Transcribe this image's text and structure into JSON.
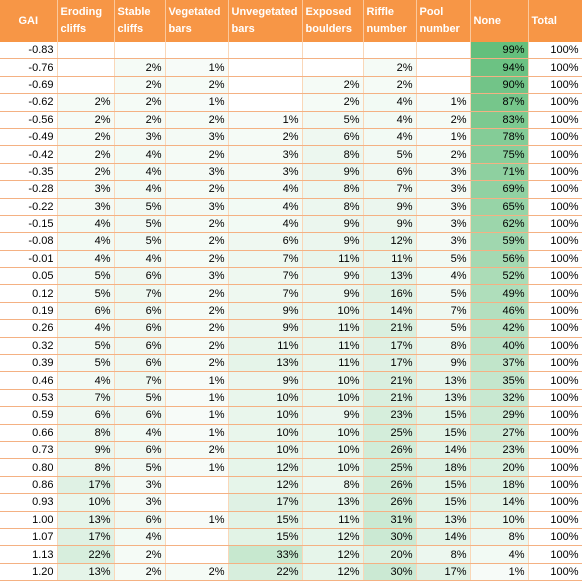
{
  "table": {
    "header": [
      "GAI",
      "Eroding cliffs",
      "Stable cliffs",
      "Vegetated bars",
      "Unvegetated bars",
      "Exposed boulders",
      "Riffle number",
      "Pool number",
      "None",
      "Total"
    ],
    "rows": [
      [
        "-0.83",
        null,
        null,
        null,
        null,
        null,
        null,
        null,
        "99%",
        "100%"
      ],
      [
        "-0.76",
        null,
        "2%",
        "1%",
        null,
        null,
        "2%",
        null,
        "94%",
        "100%"
      ],
      [
        "-0.69",
        null,
        "2%",
        "2%",
        null,
        "2%",
        "2%",
        null,
        "90%",
        "100%"
      ],
      [
        "-0.62",
        "2%",
        "2%",
        "1%",
        null,
        "2%",
        "4%",
        "1%",
        "87%",
        "100%"
      ],
      [
        "-0.56",
        "2%",
        "2%",
        "2%",
        "1%",
        "5%",
        "4%",
        "2%",
        "83%",
        "100%"
      ],
      [
        "-0.49",
        "2%",
        "3%",
        "3%",
        "2%",
        "6%",
        "4%",
        "1%",
        "78%",
        "100%"
      ],
      [
        "-0.42",
        "2%",
        "4%",
        "2%",
        "3%",
        "8%",
        "5%",
        "2%",
        "75%",
        "100%"
      ],
      [
        "-0.35",
        "2%",
        "4%",
        "3%",
        "3%",
        "9%",
        "6%",
        "3%",
        "71%",
        "100%"
      ],
      [
        "-0.28",
        "3%",
        "4%",
        "2%",
        "4%",
        "8%",
        "7%",
        "3%",
        "69%",
        "100%"
      ],
      [
        "-0.22",
        "3%",
        "5%",
        "3%",
        "4%",
        "8%",
        "9%",
        "3%",
        "65%",
        "100%"
      ],
      [
        "-0.15",
        "4%",
        "5%",
        "2%",
        "4%",
        "9%",
        "9%",
        "3%",
        "62%",
        "100%"
      ],
      [
        "-0.08",
        "4%",
        "5%",
        "2%",
        "6%",
        "9%",
        "12%",
        "3%",
        "59%",
        "100%"
      ],
      [
        "-0.01",
        "4%",
        "4%",
        "2%",
        "7%",
        "11%",
        "11%",
        "5%",
        "56%",
        "100%"
      ],
      [
        "0.05",
        "5%",
        "6%",
        "3%",
        "7%",
        "9%",
        "13%",
        "4%",
        "52%",
        "100%"
      ],
      [
        "0.12",
        "5%",
        "7%",
        "2%",
        "7%",
        "9%",
        "16%",
        "5%",
        "49%",
        "100%"
      ],
      [
        "0.19",
        "6%",
        "6%",
        "2%",
        "9%",
        "10%",
        "14%",
        "7%",
        "46%",
        "100%"
      ],
      [
        "0.26",
        "4%",
        "6%",
        "2%",
        "9%",
        "11%",
        "21%",
        "5%",
        "42%",
        "100%"
      ],
      [
        "0.32",
        "5%",
        "6%",
        "2%",
        "11%",
        "11%",
        "17%",
        "8%",
        "40%",
        "100%"
      ],
      [
        "0.39",
        "5%",
        "6%",
        "2%",
        "13%",
        "11%",
        "17%",
        "9%",
        "37%",
        "100%"
      ],
      [
        "0.46",
        "4%",
        "7%",
        "1%",
        "9%",
        "10%",
        "21%",
        "13%",
        "35%",
        "100%"
      ],
      [
        "0.53",
        "7%",
        "5%",
        "1%",
        "10%",
        "10%",
        "21%",
        "13%",
        "32%",
        "100%"
      ],
      [
        "0.59",
        "6%",
        "6%",
        "1%",
        "10%",
        "9%",
        "23%",
        "15%",
        "29%",
        "100%"
      ],
      [
        "0.66",
        "8%",
        "4%",
        "1%",
        "10%",
        "10%",
        "25%",
        "15%",
        "27%",
        "100%"
      ],
      [
        "0.73",
        "9%",
        "6%",
        "2%",
        "10%",
        "10%",
        "26%",
        "14%",
        "23%",
        "100%"
      ],
      [
        "0.80",
        "8%",
        "5%",
        "1%",
        "12%",
        "10%",
        "25%",
        "18%",
        "20%",
        "100%"
      ],
      [
        "0.86",
        "17%",
        "3%",
        null,
        "12%",
        "8%",
        "26%",
        "15%",
        "18%",
        "100%"
      ],
      [
        "0.93",
        "10%",
        "3%",
        null,
        "17%",
        "13%",
        "26%",
        "15%",
        "14%",
        "100%"
      ],
      [
        "1.00",
        "13%",
        "6%",
        "1%",
        "15%",
        "11%",
        "31%",
        "13%",
        "10%",
        "100%"
      ],
      [
        "1.07",
        "17%",
        "4%",
        null,
        "15%",
        "12%",
        "30%",
        "14%",
        "8%",
        "100%"
      ],
      [
        "1.13",
        "22%",
        "2%",
        null,
        "33%",
        "12%",
        "20%",
        "8%",
        "4%",
        "100%"
      ],
      [
        "1.20",
        "13%",
        "2%",
        "2%",
        "22%",
        "12%",
        "30%",
        "17%",
        "1%",
        "100%"
      ]
    ]
  }
}
